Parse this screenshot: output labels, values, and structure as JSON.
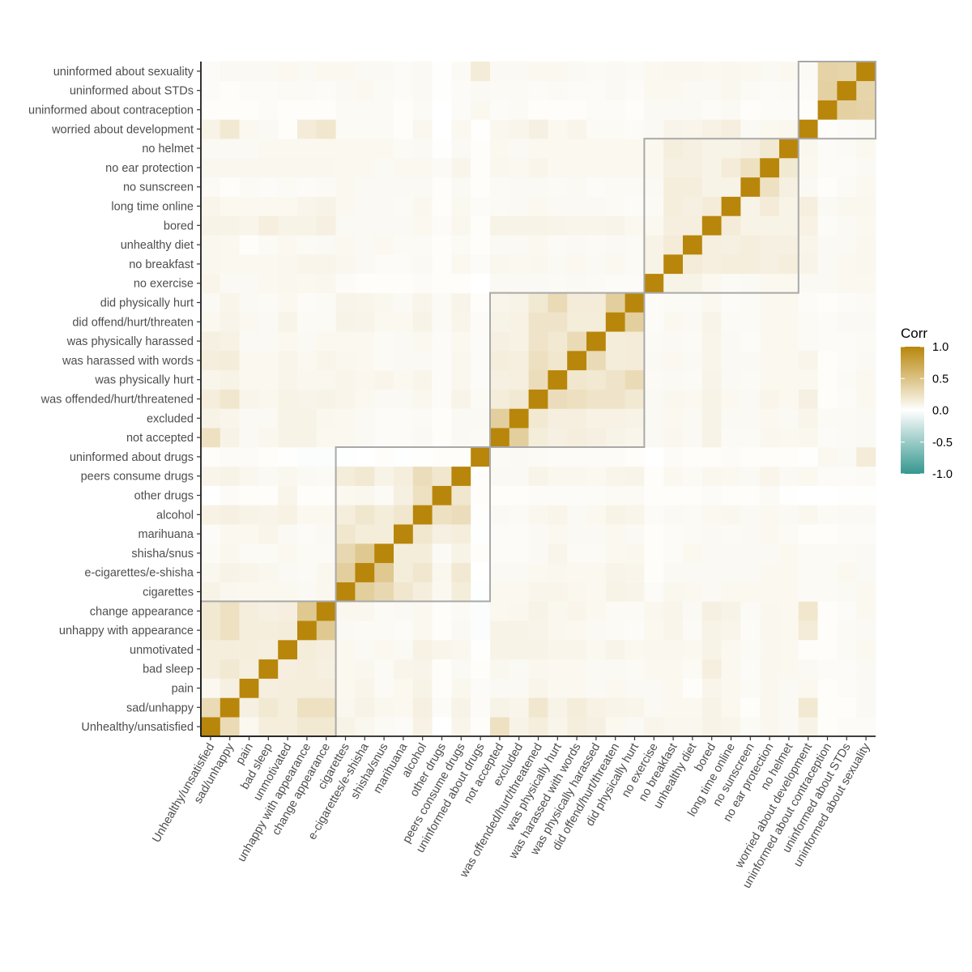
{
  "chart_data": {
    "type": "heatmap",
    "title": "",
    "xlabel": "",
    "ylabel": "",
    "variables": [
      "Unhealthy/unsatisfied",
      "sad/unhappy",
      "pain",
      "bad sleep",
      "unmotivated",
      "unhappy with appearance",
      "change appearance",
      "cigarettes",
      "e-cigarettes/e-shisha",
      "shisha/snus",
      "marihuana",
      "alcohol",
      "other drugs",
      "peers consume drugs",
      "uninformed about drugs",
      "not accepted",
      "excluded",
      "was offended/hurt/threatened",
      "was physically hurt",
      "was harassed with words",
      "was physically harassed",
      "did offend/hurt/threaten",
      "did physically hurt",
      "no exercise",
      "no breakfast",
      "unhealthy diet",
      "bored",
      "long time online",
      "no sunscreen",
      "no ear protection",
      "no helmet",
      "worried about development",
      "uninformed about contraception",
      "uninformed about STDs",
      "uninformed about sexuality"
    ],
    "clusters": [
      {
        "from": "Unhealthy/unsatisfied",
        "to": "change appearance"
      },
      {
        "from": "cigarettes",
        "to": "uninformed about drugs"
      },
      {
        "from": "not accepted",
        "to": "did physically hurt"
      },
      {
        "from": "no exercise",
        "to": "no helmet"
      },
      {
        "from": "worried about development",
        "to": "uninformed about sexuality"
      }
    ],
    "legend": {
      "title": "Corr",
      "range": [
        -1,
        1
      ],
      "tick_values": [
        1,
        0.5,
        0,
        -0.5,
        -1
      ],
      "tick_labels": [
        "1.0",
        "0.5",
        "0.0",
        "-0.5",
        "-1.0"
      ],
      "placement": "right"
    },
    "colors": {
      "low": "#35978f",
      "mid": "#ffffff",
      "high": "#b8860b"
    },
    "grid": false,
    "matrix_lower_triangle": [
      [],
      [
        0.3
      ],
      [
        0.06,
        0.12
      ],
      [
        0.14,
        0.18,
        0.13
      ],
      [
        0.14,
        0.14,
        0.14,
        0.13
      ],
      [
        0.18,
        0.25,
        0.14,
        0.14,
        0.15
      ],
      [
        0.18,
        0.25,
        0.14,
        0.12,
        0.13,
        0.45
      ],
      [
        0.1,
        0.07,
        0.06,
        0.06,
        0.06,
        0.05,
        0.07
      ],
      [
        0.07,
        0.1,
        0.08,
        0.07,
        0.05,
        0.04,
        0.07,
        0.4
      ],
      [
        0.04,
        0.07,
        0.04,
        0.04,
        0.06,
        0.04,
        0.04,
        0.32,
        0.45
      ],
      [
        0.03,
        0.06,
        0.06,
        0.08,
        0.05,
        0.03,
        0.05,
        0.2,
        0.15,
        0.15
      ],
      [
        0.11,
        0.12,
        0.1,
        0.09,
        0.11,
        0.06,
        0.06,
        0.14,
        0.2,
        0.15,
        0.2
      ],
      [
        0.0,
        0.03,
        0.02,
        0.02,
        0.08,
        0.02,
        0.02,
        0.06,
        0.07,
        0.04,
        0.12,
        0.25
      ],
      [
        0.08,
        0.1,
        0.07,
        0.05,
        0.07,
        0.05,
        0.04,
        0.15,
        0.18,
        0.1,
        0.14,
        0.28,
        0.2
      ],
      [
        0.02,
        0.03,
        0.03,
        0.02,
        0.01,
        -0.02,
        -0.02,
        -0.01,
        0.0,
        0.02,
        -0.01,
        0.01,
        0.02,
        0.02
      ],
      [
        0.25,
        0.1,
        0.05,
        0.07,
        0.1,
        0.1,
        0.06,
        0.06,
        0.05,
        0.03,
        0.03,
        0.05,
        0.02,
        0.05,
        0.04
      ],
      [
        0.1,
        0.08,
        0.05,
        0.05,
        0.1,
        0.1,
        0.07,
        0.06,
        0.05,
        0.03,
        0.03,
        0.04,
        0.02,
        0.05,
        0.05,
        0.4
      ],
      [
        0.14,
        0.2,
        0.08,
        0.07,
        0.1,
        0.09,
        0.1,
        0.08,
        0.06,
        0.05,
        0.05,
        0.07,
        0.03,
        0.09,
        0.04,
        0.15,
        0.18
      ],
      [
        0.08,
        0.1,
        0.06,
        0.06,
        0.08,
        0.07,
        0.07,
        0.08,
        0.07,
        0.08,
        0.06,
        0.08,
        0.03,
        0.07,
        0.03,
        0.12,
        0.13,
        0.28
      ],
      [
        0.14,
        0.15,
        0.06,
        0.06,
        0.08,
        0.06,
        0.08,
        0.07,
        0.06,
        0.04,
        0.05,
        0.05,
        0.03,
        0.07,
        0.03,
        0.14,
        0.13,
        0.26,
        0.2
      ],
      [
        0.12,
        0.11,
        0.05,
        0.05,
        0.06,
        0.05,
        0.06,
        0.06,
        0.06,
        0.04,
        0.05,
        0.06,
        0.03,
        0.06,
        0.03,
        0.12,
        0.11,
        0.22,
        0.18,
        0.3
      ],
      [
        0.06,
        0.09,
        0.06,
        0.05,
        0.09,
        0.04,
        0.04,
        0.1,
        0.09,
        0.06,
        0.06,
        0.1,
        0.04,
        0.08,
        0.03,
        0.1,
        0.11,
        0.22,
        0.22,
        0.15,
        0.15
      ],
      [
        0.05,
        0.08,
        0.05,
        0.04,
        0.06,
        0.03,
        0.04,
        0.09,
        0.08,
        0.07,
        0.05,
        0.08,
        0.04,
        0.09,
        0.02,
        0.08,
        0.1,
        0.18,
        0.3,
        0.16,
        0.16,
        0.4
      ],
      [
        0.08,
        0.05,
        0.05,
        0.06,
        0.07,
        0.06,
        0.07,
        0.03,
        0.02,
        0.02,
        0.02,
        0.03,
        0.02,
        0.02,
        0.0,
        0.05,
        0.05,
        0.05,
        0.04,
        0.05,
        0.04,
        0.03,
        0.03
      ],
      [
        0.07,
        0.06,
        0.06,
        0.06,
        0.07,
        0.08,
        0.08,
        0.07,
        0.05,
        0.03,
        0.03,
        0.05,
        0.02,
        0.06,
        0.03,
        0.07,
        0.06,
        0.07,
        0.05,
        0.06,
        0.05,
        0.06,
        0.04,
        0.1
      ],
      [
        0.07,
        0.06,
        0.02,
        0.04,
        0.06,
        0.04,
        0.05,
        0.06,
        0.05,
        0.06,
        0.04,
        0.04,
        0.02,
        0.04,
        0.02,
        0.05,
        0.05,
        0.06,
        0.04,
        0.05,
        0.04,
        0.05,
        0.04,
        0.1,
        0.16
      ],
      [
        0.1,
        0.1,
        0.08,
        0.13,
        0.1,
        0.1,
        0.12,
        0.05,
        0.05,
        0.05,
        0.05,
        0.06,
        0.03,
        0.07,
        0.02,
        0.1,
        0.1,
        0.1,
        0.09,
        0.08,
        0.08,
        0.09,
        0.06,
        0.06,
        0.13,
        0.13
      ],
      [
        0.08,
        0.06,
        0.06,
        0.06,
        0.06,
        0.08,
        0.1,
        0.06,
        0.05,
        0.05,
        0.04,
        0.07,
        0.02,
        0.06,
        0.03,
        0.04,
        0.05,
        0.06,
        0.05,
        0.05,
        0.05,
        0.04,
        0.03,
        0.04,
        0.14,
        0.12,
        0.16
      ],
      [
        0.04,
        0.02,
        0.04,
        0.03,
        0.04,
        0.03,
        0.04,
        0.06,
        0.05,
        0.05,
        0.05,
        0.05,
        0.02,
        0.05,
        0.02,
        0.04,
        0.05,
        0.05,
        0.04,
        0.05,
        0.03,
        0.04,
        0.04,
        0.05,
        0.14,
        0.14,
        0.1,
        0.1
      ],
      [
        0.07,
        0.07,
        0.07,
        0.07,
        0.07,
        0.07,
        0.07,
        0.06,
        0.06,
        0.05,
        0.06,
        0.06,
        0.04,
        0.08,
        0.02,
        0.07,
        0.06,
        0.08,
        0.06,
        0.06,
        0.06,
        0.06,
        0.06,
        0.06,
        0.12,
        0.12,
        0.1,
        0.16,
        0.25
      ],
      [
        0.05,
        0.05,
        0.05,
        0.06,
        0.06,
        0.06,
        0.06,
        0.06,
        0.06,
        0.06,
        0.04,
        0.05,
        0.01,
        0.05,
        0.02,
        0.06,
        0.05,
        0.06,
        0.06,
        0.06,
        0.06,
        0.06,
        0.06,
        0.06,
        0.14,
        0.12,
        0.1,
        0.1,
        0.12,
        0.18
      ],
      [
        0.1,
        0.18,
        0.06,
        0.05,
        0.02,
        0.16,
        0.2,
        0.04,
        0.04,
        0.04,
        0.02,
        0.07,
        0.0,
        0.06,
        0.01,
        0.07,
        0.08,
        0.12,
        0.06,
        0.08,
        0.04,
        0.04,
        0.03,
        0.05,
        0.09,
        0.08,
        0.11,
        0.13,
        0.05,
        0.06,
        0.07
      ],
      [
        0.02,
        0.02,
        0.02,
        0.03,
        0.02,
        0.02,
        0.02,
        0.04,
        0.04,
        0.04,
        0.02,
        0.04,
        0.0,
        0.03,
        0.06,
        0.03,
        0.04,
        0.02,
        0.02,
        0.02,
        0.03,
        0.03,
        0.02,
        0.05,
        0.05,
        0.05,
        0.03,
        0.05,
        0.02,
        0.03,
        0.03,
        0.02
      ],
      [
        0.03,
        0.02,
        0.03,
        0.03,
        0.04,
        0.04,
        0.03,
        0.05,
        0.06,
        0.04,
        0.03,
        0.05,
        0.01,
        0.03,
        0.05,
        0.04,
        0.04,
        0.03,
        0.04,
        0.03,
        0.03,
        0.05,
        0.03,
        0.06,
        0.06,
        0.05,
        0.05,
        0.07,
        0.04,
        0.03,
        0.04,
        0.03,
        0.38
      ],
      [
        0.03,
        0.05,
        0.05,
        0.05,
        0.06,
        0.05,
        0.06,
        0.06,
        0.05,
        0.05,
        0.03,
        0.05,
        0.01,
        0.04,
        0.16,
        0.05,
        0.05,
        0.06,
        0.06,
        0.05,
        0.04,
        0.05,
        0.04,
        0.06,
        0.07,
        0.07,
        0.06,
        0.07,
        0.06,
        0.05,
        0.06,
        0.04,
        0.36,
        0.35
      ]
    ]
  }
}
